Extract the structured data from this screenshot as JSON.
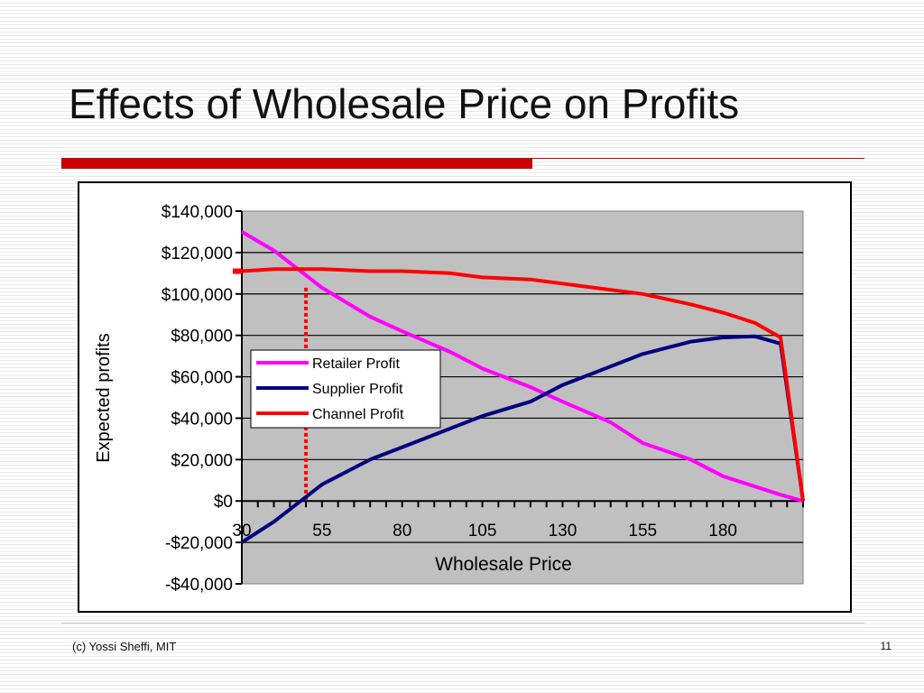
{
  "slide": {
    "title": "Effects of Wholesale Price on Profits",
    "footer_left": "(c) Yossi Sheffi, MIT",
    "page_number": "11"
  },
  "colors": {
    "accent_rule": "#cc0000",
    "plot_background": "#c0c0c0",
    "retailer": "#ff00ff",
    "supplier": "#000080",
    "channel": "#ff0000"
  },
  "chart_data": {
    "type": "line",
    "title": "",
    "xlabel": "Wholesale Price",
    "ylabel": "Expected profits",
    "xlim": [
      30,
      205
    ],
    "ylim": [
      -40000,
      140000
    ],
    "x_ticks": [
      30,
      55,
      80,
      105,
      130,
      155,
      180
    ],
    "x_tick_labels": [
      "30",
      "55",
      "80",
      "105",
      "130",
      "155",
      "180"
    ],
    "y_ticks": [
      -40000,
      -20000,
      0,
      20000,
      40000,
      60000,
      80000,
      100000,
      120000,
      140000
    ],
    "y_tick_labels": [
      "-$40,000",
      "-$20,000",
      "$0",
      "$20,000",
      "$40,000",
      "$60,000",
      "$80,000",
      "$100,000",
      "$120,000",
      "$140,000"
    ],
    "grid": "horizontal",
    "legend_position": "middle-left",
    "x": [
      30,
      40,
      55,
      70,
      80,
      95,
      105,
      120,
      130,
      145,
      155,
      170,
      180,
      190,
      198,
      205
    ],
    "series": [
      {
        "name": "Retailer Profit",
        "color": "#ff00ff",
        "values": [
          130000,
          121000,
          103000,
          89000,
          82000,
          72000,
          64000,
          55000,
          48000,
          38000,
          28000,
          20000,
          12000,
          7000,
          3000,
          0
        ]
      },
      {
        "name": "Supplier Profit",
        "color": "#000080",
        "values": [
          -20000,
          -10000,
          8000,
          20000,
          26000,
          35000,
          41000,
          48000,
          56000,
          65000,
          71000,
          77000,
          79000,
          79500,
          76000,
          0
        ]
      },
      {
        "name": "Channel Profit",
        "color": "#ff0000",
        "values": [
          111000,
          112000,
          112000,
          111000,
          111000,
          110000,
          108000,
          107000,
          105000,
          102000,
          100000,
          95000,
          91000,
          86000,
          79000,
          0
        ]
      }
    ],
    "annotation": {
      "type": "dashed-vertical-line",
      "x": 50,
      "color": "#ff0000"
    }
  }
}
